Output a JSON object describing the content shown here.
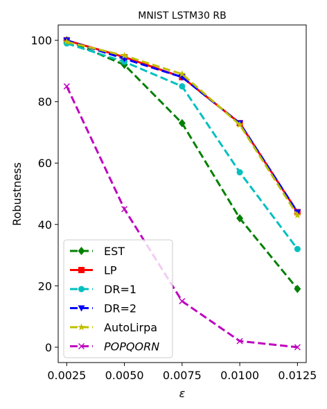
{
  "chart_data": {
    "type": "line",
    "title": "MNIST LSTM30 RB",
    "xlabel": "ε",
    "ylabel": "Robustness",
    "x": [
      0.0025,
      0.005,
      0.0075,
      0.01,
      0.0125
    ],
    "x_tick_labels": [
      "0.0025",
      "0.0050",
      "0.0075",
      "0.0100",
      "0.0125"
    ],
    "y_ticks": [
      0,
      20,
      40,
      60,
      80,
      100
    ],
    "y_tick_labels": [
      "0",
      "20",
      "40",
      "60",
      "80",
      "100"
    ],
    "xlim": [
      0.00213,
      0.01288
    ],
    "ylim": [
      -5,
      105
    ],
    "grid": false,
    "legend_position": "lower-left",
    "series": [
      {
        "name": "EST",
        "color": "#008000",
        "marker": "diamond",
        "linestyle": "dashed",
        "italic": false,
        "values": [
          100,
          92,
          73,
          42,
          19
        ]
      },
      {
        "name": "LP",
        "color": "#ff0000",
        "marker": "square",
        "linestyle": "solid",
        "italic": false,
        "values": [
          100,
          94.5,
          88,
          73,
          44
        ]
      },
      {
        "name": "DR=1",
        "color": "#00bfbf",
        "marker": "circle",
        "linestyle": "dashed",
        "italic": false,
        "values": [
          99,
          93,
          85,
          57,
          32
        ]
      },
      {
        "name": "DR=2",
        "color": "#0000ff",
        "marker": "triangle-down",
        "linestyle": "dashed",
        "italic": false,
        "values": [
          100,
          94,
          88,
          73,
          44
        ]
      },
      {
        "name": "AutoLirpa",
        "color": "#bfbf00",
        "marker": "star",
        "linestyle": "dashed",
        "italic": false,
        "values": [
          99.5,
          95,
          89,
          72.5,
          43
        ]
      },
      {
        "name": "POPQORN",
        "color": "#bf00bf",
        "marker": "x",
        "linestyle": "dashed",
        "italic": true,
        "values": [
          85,
          45,
          15,
          2,
          0
        ]
      }
    ]
  }
}
